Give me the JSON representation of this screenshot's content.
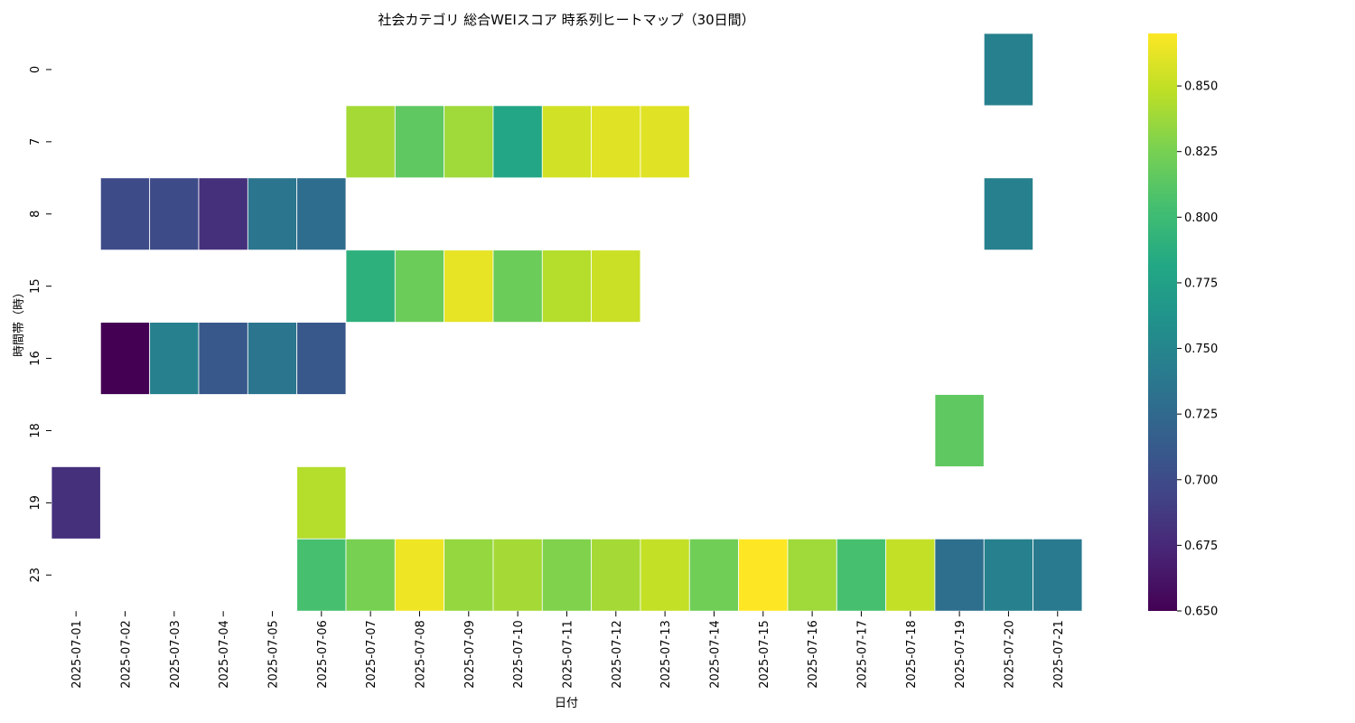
{
  "chart_data": {
    "type": "heatmap",
    "title": "社会カテゴリ 総合WEIスコア 時系列ヒートマップ（30日間）",
    "xlabel": "日付",
    "ylabel": "時間帯（時）",
    "x_categories": [
      "2025-07-01",
      "2025-07-02",
      "2025-07-03",
      "2025-07-04",
      "2025-07-05",
      "2025-07-06",
      "2025-07-07",
      "2025-07-08",
      "2025-07-09",
      "2025-07-10",
      "2025-07-11",
      "2025-07-12",
      "2025-07-13",
      "2025-07-14",
      "2025-07-15",
      "2025-07-16",
      "2025-07-17",
      "2025-07-18",
      "2025-07-19",
      "2025-07-20",
      "2025-07-21"
    ],
    "y_categories": [
      "0",
      "7",
      "8",
      "15",
      "16",
      "18",
      "19",
      "23"
    ],
    "values": [
      [
        null,
        null,
        null,
        null,
        null,
        null,
        null,
        null,
        null,
        null,
        null,
        null,
        null,
        null,
        null,
        null,
        null,
        null,
        null,
        0.745,
        null
      ],
      [
        null,
        null,
        null,
        null,
        null,
        null,
        0.84,
        0.815,
        0.838,
        0.78,
        0.855,
        0.86,
        0.86,
        null,
        null,
        null,
        null,
        null,
        null,
        null,
        null
      ],
      [
        null,
        0.7,
        0.7,
        0.68,
        0.735,
        0.728,
        null,
        null,
        null,
        null,
        null,
        null,
        null,
        null,
        null,
        null,
        null,
        null,
        null,
        0.745,
        null
      ],
      [
        null,
        null,
        null,
        null,
        null,
        null,
        0.79,
        0.82,
        0.862,
        0.82,
        0.845,
        0.852,
        null,
        null,
        null,
        null,
        null,
        null,
        null,
        null,
        null
      ],
      [
        null,
        0.65,
        0.745,
        0.71,
        0.735,
        0.71,
        null,
        null,
        null,
        null,
        null,
        null,
        null,
        null,
        null,
        null,
        null,
        null,
        null,
        null,
        null
      ],
      [
        null,
        null,
        null,
        null,
        null,
        null,
        null,
        null,
        null,
        null,
        null,
        null,
        null,
        null,
        null,
        null,
        null,
        null,
        0.815,
        null,
        null
      ],
      [
        0.68,
        null,
        null,
        null,
        null,
        0.845,
        null,
        null,
        null,
        null,
        null,
        null,
        null,
        null,
        null,
        null,
        null,
        null,
        null,
        null,
        null
      ],
      [
        null,
        null,
        null,
        null,
        null,
        0.805,
        0.825,
        0.865,
        0.835,
        0.84,
        0.828,
        0.84,
        0.85,
        0.822,
        0.87,
        0.838,
        0.805,
        0.85,
        0.73,
        0.745,
        0.74
      ]
    ],
    "colormap": "viridis",
    "vmin": 0.65,
    "vmax": 0.87,
    "colorbar_ticks": [
      "0.650",
      "0.675",
      "0.700",
      "0.725",
      "0.750",
      "0.775",
      "0.800",
      "0.825",
      "0.850"
    ],
    "missing_color": "#ffffff",
    "grid": false,
    "legend": "colorbar-right"
  }
}
